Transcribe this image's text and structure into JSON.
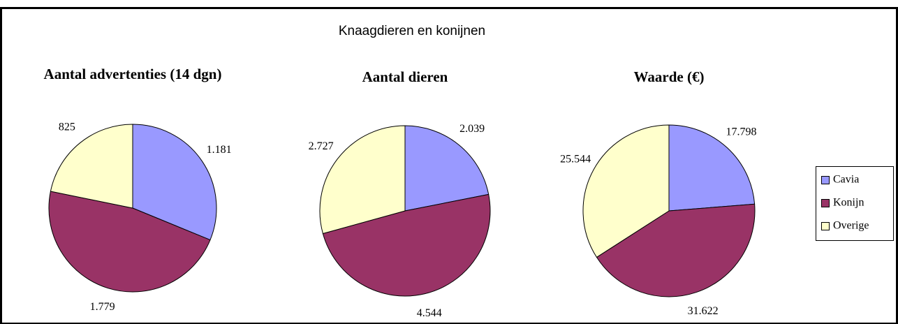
{
  "title": "Knaagdieren en konijnen",
  "chart_data": [
    {
      "type": "pie",
      "title": "Aantal advertenties (14 dgn)",
      "categories": [
        "Cavia",
        "Konijn",
        "Overige"
      ],
      "values": [
        1181,
        1779,
        825
      ],
      "value_labels": [
        "1.181",
        "1.779",
        "825"
      ],
      "colors": [
        "#9999ff",
        "#993366",
        "#ffffcc"
      ]
    },
    {
      "type": "pie",
      "title": "Aantal dieren",
      "categories": [
        "Cavia",
        "Konijn",
        "Overige"
      ],
      "values": [
        2039,
        4544,
        2727
      ],
      "value_labels": [
        "2.039",
        "4.544",
        "2.727"
      ],
      "colors": [
        "#9999ff",
        "#993366",
        "#ffffcc"
      ]
    },
    {
      "type": "pie",
      "title": "Waarde (€)",
      "categories": [
        "Cavia",
        "Konijn",
        "Overige"
      ],
      "values": [
        17798,
        31622,
        25544
      ],
      "value_labels": [
        "17.798",
        "31.622",
        "25.544"
      ],
      "colors": [
        "#9999ff",
        "#993366",
        "#ffffcc"
      ]
    }
  ]
}
